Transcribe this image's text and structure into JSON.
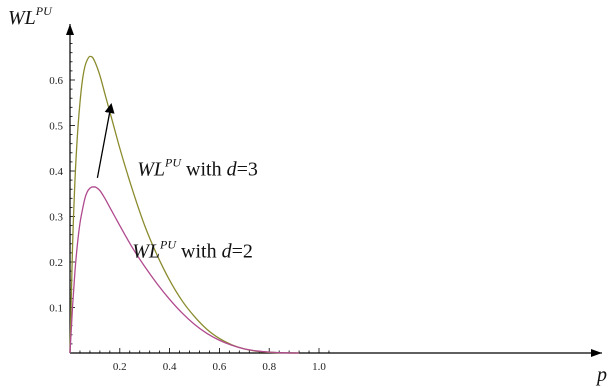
{
  "chart_data": {
    "type": "line",
    "title": "",
    "xlabel": "p",
    "ylabel": {
      "base": "WL",
      "sup": "PU"
    },
    "xlim": [
      0,
      1.08
    ],
    "ylim": [
      0,
      0.7
    ],
    "x_ticks": [
      0.2,
      0.4,
      0.6,
      0.8,
      1.0
    ],
    "x_tick_labels": [
      "0.2",
      "0.4",
      "0.6",
      "0.8",
      "1.0"
    ],
    "y_ticks": [
      0.1,
      0.2,
      0.3,
      0.4,
      0.5,
      0.6
    ],
    "y_tick_labels": [
      "0.1",
      "0.2",
      "0.3",
      "0.4",
      "0.5",
      "0.6"
    ],
    "series": [
      {
        "color": "#8b8b2e",
        "x": [
          0,
          0.01,
          0.02,
          0.03,
          0.04,
          0.05,
          0.06,
          0.07,
          0.08,
          0.09,
          0.1,
          0.12,
          0.14,
          0.16,
          0.18,
          0.2,
          0.25,
          0.3,
          0.35,
          0.4,
          0.45,
          0.5,
          0.55,
          0.6,
          0.65,
          0.7,
          0.75,
          0.8,
          0.85,
          0.9,
          0.92
        ],
        "y": [
          0,
          0.23,
          0.38,
          0.48,
          0.55,
          0.6,
          0.63,
          0.645,
          0.652,
          0.65,
          0.64,
          0.61,
          0.57,
          0.53,
          0.49,
          0.45,
          0.36,
          0.28,
          0.215,
          0.16,
          0.115,
          0.08,
          0.052,
          0.032,
          0.018,
          0.009,
          0.004,
          0.0015,
          0.0005,
          0.0001,
          0
        ]
      },
      {
        "color": "#b04a8e",
        "x": [
          0,
          0.01,
          0.02,
          0.03,
          0.04,
          0.05,
          0.06,
          0.07,
          0.08,
          0.09,
          0.1,
          0.11,
          0.12,
          0.14,
          0.16,
          0.18,
          0.2,
          0.25,
          0.3,
          0.35,
          0.4,
          0.45,
          0.5,
          0.55,
          0.6,
          0.65,
          0.7,
          0.75,
          0.8,
          0.85,
          0.9,
          0.92
        ],
        "y": [
          0,
          0.1,
          0.18,
          0.24,
          0.285,
          0.315,
          0.34,
          0.355,
          0.362,
          0.365,
          0.365,
          0.362,
          0.357,
          0.34,
          0.32,
          0.3,
          0.28,
          0.232,
          0.19,
          0.152,
          0.118,
          0.088,
          0.063,
          0.043,
          0.028,
          0.017,
          0.009,
          0.0045,
          0.002,
          0.0007,
          0.0001,
          0
        ]
      }
    ],
    "annotations": [
      {
        "base": "WL",
        "sup": "PU",
        "text_mid": " with ",
        "var": "d",
        "eq": "=3",
        "x": 0.27,
        "y": 0.39
      },
      {
        "base": "WL",
        "sup": "PU",
        "text_mid": " with ",
        "var": "d",
        "eq": "=2",
        "x": 0.25,
        "y": 0.21
      }
    ],
    "arrow": {
      "from": {
        "x": 0.11,
        "y": 0.385
      },
      "to": {
        "x": 0.165,
        "y": 0.545
      }
    }
  }
}
